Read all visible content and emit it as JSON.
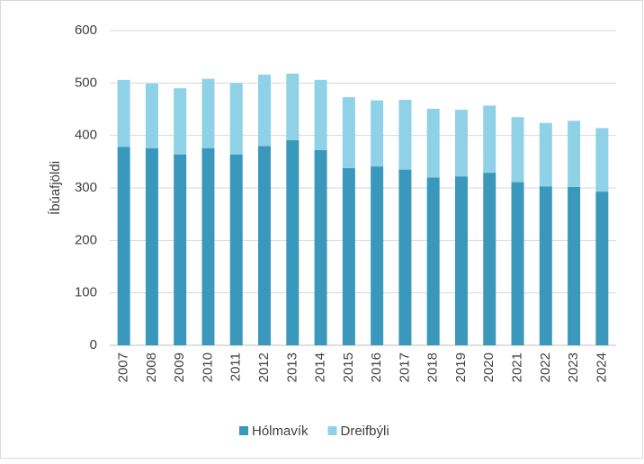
{
  "chart_data": {
    "type": "stacked_bar",
    "y_label": "Íbúafjöldi",
    "categories": [
      "2007",
      "2008",
      "2009",
      "2010",
      "2011",
      "2012",
      "2013",
      "2014",
      "2015",
      "2016",
      "2017",
      "2018",
      "2019",
      "2020",
      "2021",
      "2022",
      "2023",
      "2024"
    ],
    "series": [
      {
        "name": "Hólmavík",
        "color": "#3a98bd",
        "values": [
          378,
          376,
          364,
          376,
          364,
          380,
          391,
          372,
          338,
          341,
          335,
          320,
          322,
          329,
          311,
          303,
          302,
          293
        ]
      },
      {
        "name": "Dreifbýli",
        "color": "#8fd2e8",
        "values": [
          128,
          123,
          126,
          132,
          136,
          136,
          127,
          134,
          135,
          126,
          133,
          131,
          127,
          128,
          124,
          121,
          126,
          121
        ]
      }
    ],
    "ylim": [
      0,
      600
    ],
    "yticks": [
      0,
      100,
      200,
      300,
      400,
      500,
      600
    ],
    "grid": true,
    "legend": "bottom"
  }
}
